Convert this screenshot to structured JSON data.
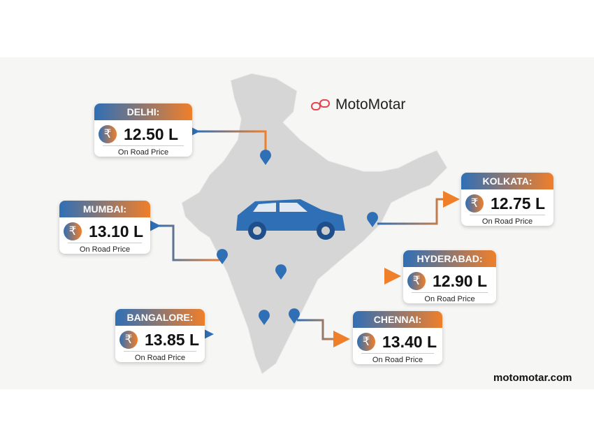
{
  "brand": {
    "name": "MotoMotar",
    "website": "motomotar.com",
    "logo_color": "#e8434f"
  },
  "colors": {
    "blue": "#2f6fb6",
    "orange": "#f07f2a",
    "map": "#d6d6d6"
  },
  "cities": [
    {
      "name": "DELHI:",
      "price": "12.50 L",
      "sub": "On Road Price",
      "currency": "₹"
    },
    {
      "name": "MUMBAI:",
      "price": "13.10 L",
      "sub": "On Road Price",
      "currency": "₹"
    },
    {
      "name": "KOLKATA:",
      "price": "12.75 L",
      "sub": "On Road Price",
      "currency": "₹"
    },
    {
      "name": "HYDERABAD:",
      "price": "12.90 L",
      "sub": "On Road Price",
      "currency": "₹"
    },
    {
      "name": "BANGALORE:",
      "price": "13.85 L",
      "sub": "On Road Price",
      "currency": "₹"
    },
    {
      "name": "CHENNAI:",
      "price": "13.40 L",
      "sub": "On Road Price",
      "currency": "₹"
    }
  ]
}
